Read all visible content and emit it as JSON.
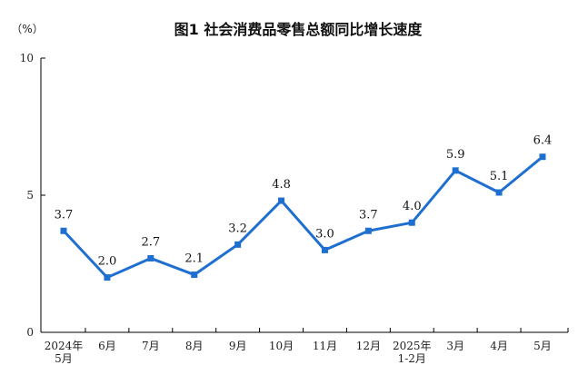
{
  "chart_data": {
    "type": "line",
    "title": "图1 社会消费品零售总额同比增长速度",
    "ylabel": "（%）",
    "xlabel": "",
    "ylim": [
      0,
      10
    ],
    "yticks": [
      "0",
      "5",
      "10"
    ],
    "categories": [
      [
        "2024年",
        "5月"
      ],
      [
        "6月"
      ],
      [
        "7月"
      ],
      [
        "8月"
      ],
      [
        "9月"
      ],
      [
        "10月"
      ],
      [
        "11月"
      ],
      [
        "12月"
      ],
      [
        "2025年",
        "1-2月"
      ],
      [
        "3月"
      ],
      [
        "4月"
      ],
      [
        "5月"
      ]
    ],
    "series": [
      {
        "values": [
          3.7,
          2.0,
          2.7,
          2.1,
          3.2,
          4.8,
          3.0,
          3.7,
          4.0,
          5.9,
          5.1,
          6.4
        ],
        "data_labels": [
          "3.7",
          "2.0",
          "2.7",
          "2.1",
          "3.2",
          "4.8",
          "3.0",
          "3.7",
          "4.0",
          "5.9",
          "5.1",
          "6.4"
        ],
        "color": "#1f6fd1"
      }
    ],
    "grid": false,
    "legend": "none"
  }
}
